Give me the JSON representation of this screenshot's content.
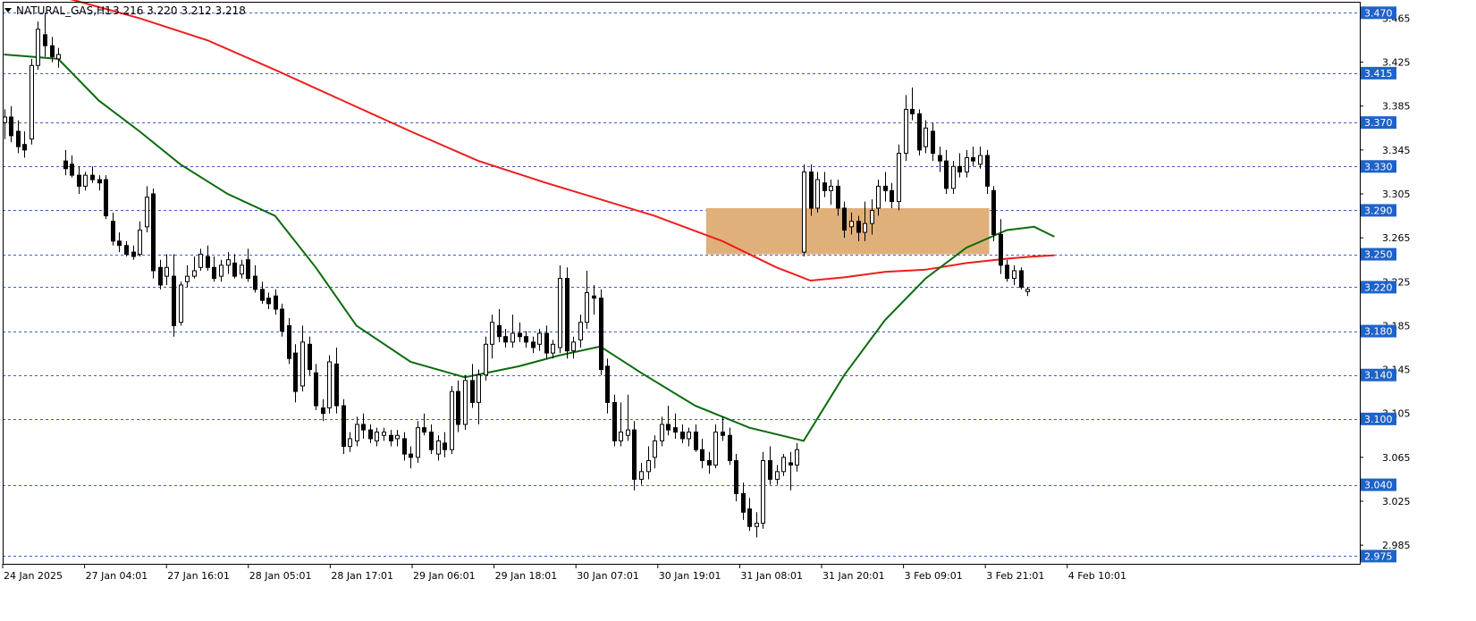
{
  "header": {
    "symbol": "NATURAL_GAS,H1",
    "ohlc": "3.216 3.220 3.212 3.218"
  },
  "colors": {
    "background": "#ffffff",
    "candle_bull_fill": "#ffffff",
    "candle_bear_fill": "#000000",
    "candle_outline": "#000000",
    "ma_fast": "#0b6b0b",
    "ma_slow": "#ee1d1d",
    "level_line": "#3b5fc0",
    "level_label_bg": "#1e63c8",
    "level_label_text": "#ffffff",
    "zone_fill": "#e0b07a",
    "axis_text": "#000000"
  },
  "chart_data": {
    "type": "candlestick",
    "timeframe": "H1",
    "ylim": [
      2.968,
      3.48
    ],
    "y_ticks": [
      "3.465",
      "3.425",
      "3.385",
      "3.345",
      "3.305",
      "3.265",
      "3.225",
      "3.185",
      "3.145",
      "3.105",
      "3.065",
      "3.025",
      "2.985"
    ],
    "x_tick_labels": [
      "24 Jan 2025",
      "27 Jan 04:01",
      "27 Jan 16:01",
      "28 Jan 05:01",
      "28 Jan 17:01",
      "29 Jan 06:01",
      "29 Jan 18:01",
      "30 Jan 07:01",
      "30 Jan 19:01",
      "31 Jan 08:01",
      "31 Jan 20:01",
      "3 Feb 09:01",
      "3 Feb 21:01",
      "4 Feb 10:01"
    ],
    "levels": [
      "3.470",
      "3.415",
      "3.370",
      "3.330",
      "3.290",
      "3.250",
      "3.220",
      "3.180",
      "3.140",
      "3.100",
      "3.040",
      "2.975"
    ],
    "zone": {
      "from_price": 3.25,
      "to_price": 3.292,
      "start_bar": 104,
      "end_bar": 145
    },
    "candles": [
      [
        3.37,
        3.382,
        3.355,
        3.375
      ],
      [
        3.375,
        3.385,
        3.352,
        3.358
      ],
      [
        3.362,
        3.372,
        3.342,
        3.348
      ],
      [
        3.35,
        3.362,
        3.338,
        3.345
      ],
      [
        3.355,
        3.428,
        3.35,
        3.422
      ],
      [
        3.422,
        3.462,
        3.418,
        3.455
      ],
      [
        3.45,
        3.47,
        3.43,
        3.44
      ],
      [
        3.44,
        3.448,
        3.425,
        3.43
      ],
      [
        3.428,
        3.438,
        3.42,
        3.432
      ],
      [
        3.335,
        3.345,
        3.322,
        3.328
      ],
      [
        3.332,
        3.34,
        3.32,
        3.322
      ],
      [
        3.322,
        3.33,
        3.305,
        3.312
      ],
      [
        3.312,
        3.325,
        3.308,
        3.322
      ],
      [
        3.322,
        3.33,
        3.315,
        3.318
      ],
      [
        3.318,
        3.322,
        3.308,
        3.315
      ],
      [
        3.318,
        3.322,
        3.282,
        3.285
      ],
      [
        3.28,
        3.288,
        3.258,
        3.262
      ],
      [
        3.262,
        3.27,
        3.252,
        3.258
      ],
      [
        3.258,
        3.262,
        3.248,
        3.25
      ],
      [
        3.252,
        3.258,
        3.245,
        3.248
      ],
      [
        3.25,
        3.28,
        3.248,
        3.272
      ],
      [
        3.275,
        3.312,
        3.27,
        3.302
      ],
      [
        3.305,
        3.31,
        3.228,
        3.235
      ],
      [
        3.238,
        3.245,
        3.218,
        3.222
      ],
      [
        3.23,
        3.25,
        3.222,
        3.238
      ],
      [
        3.23,
        3.25,
        3.175,
        3.185
      ],
      [
        3.188,
        3.225,
        3.185,
        3.222
      ],
      [
        3.225,
        3.24,
        3.22,
        3.23
      ],
      [
        3.23,
        3.248,
        3.228,
        3.235
      ],
      [
        3.238,
        3.255,
        3.235,
        3.25
      ],
      [
        3.248,
        3.258,
        3.235,
        3.238
      ],
      [
        3.238,
        3.248,
        3.225,
        3.228
      ],
      [
        3.23,
        3.245,
        3.225,
        3.24
      ],
      [
        3.24,
        3.252,
        3.232,
        3.245
      ],
      [
        3.242,
        3.25,
        3.228,
        3.23
      ],
      [
        3.232,
        3.245,
        3.228,
        3.24
      ],
      [
        3.245,
        3.255,
        3.225,
        3.228
      ],
      [
        3.23,
        3.24,
        3.215,
        3.218
      ],
      [
        3.218,
        3.225,
        3.205,
        3.208
      ],
      [
        3.21,
        3.215,
        3.2,
        3.205
      ],
      [
        3.212,
        3.218,
        3.195,
        3.2
      ],
      [
        3.2,
        3.205,
        3.175,
        3.18
      ],
      [
        3.185,
        3.192,
        3.15,
        3.155
      ],
      [
        3.16,
        3.168,
        3.115,
        3.125
      ],
      [
        3.13,
        3.185,
        3.125,
        3.17
      ],
      [
        3.168,
        3.175,
        3.14,
        3.145
      ],
      [
        3.142,
        3.15,
        3.108,
        3.112
      ],
      [
        3.11,
        3.118,
        3.098,
        3.105
      ],
      [
        3.11,
        3.158,
        3.105,
        3.152
      ],
      [
        3.15,
        3.165,
        3.105,
        3.112
      ],
      [
        3.112,
        3.118,
        3.068,
        3.075
      ],
      [
        3.075,
        3.088,
        3.07,
        3.082
      ],
      [
        3.08,
        3.102,
        3.075,
        3.095
      ],
      [
        3.095,
        3.105,
        3.082,
        3.09
      ],
      [
        3.09,
        3.095,
        3.078,
        3.082
      ],
      [
        3.08,
        3.092,
        3.075,
        3.088
      ],
      [
        3.085,
        3.092,
        3.08,
        3.088
      ],
      [
        3.085,
        3.09,
        3.075,
        3.08
      ],
      [
        3.082,
        3.09,
        3.075,
        3.085
      ],
      [
        3.082,
        3.088,
        3.062,
        3.068
      ],
      [
        3.068,
        3.075,
        3.055,
        3.065
      ],
      [
        3.065,
        3.098,
        3.06,
        3.092
      ],
      [
        3.092,
        3.105,
        3.085,
        3.088
      ],
      [
        3.088,
        3.095,
        3.068,
        3.072
      ],
      [
        3.068,
        3.085,
        3.062,
        3.08
      ],
      [
        3.078,
        3.088,
        3.065,
        3.072
      ],
      [
        3.072,
        3.13,
        3.068,
        3.125
      ],
      [
        3.125,
        3.135,
        3.088,
        3.095
      ],
      [
        3.095,
        3.14,
        3.09,
        3.135
      ],
      [
        3.135,
        3.15,
        3.11,
        3.115
      ],
      [
        3.115,
        3.145,
        3.095,
        3.14
      ],
      [
        3.14,
        3.175,
        3.135,
        3.168
      ],
      [
        3.168,
        3.195,
        3.155,
        3.188
      ],
      [
        3.185,
        3.2,
        3.17,
        3.175
      ],
      [
        3.175,
        3.182,
        3.165,
        3.17
      ],
      [
        3.17,
        3.195,
        3.165,
        3.178
      ],
      [
        3.178,
        3.188,
        3.17,
        3.175
      ],
      [
        3.175,
        3.18,
        3.165,
        3.17
      ],
      [
        3.17,
        3.175,
        3.16,
        3.165
      ],
      [
        3.168,
        3.182,
        3.162,
        3.178
      ],
      [
        3.178,
        3.185,
        3.155,
        3.16
      ],
      [
        3.16,
        3.172,
        3.155,
        3.168
      ],
      [
        3.165,
        3.24,
        3.16,
        3.228
      ],
      [
        3.228,
        3.238,
        3.155,
        3.162
      ],
      [
        3.162,
        3.175,
        3.155,
        3.17
      ],
      [
        3.172,
        3.195,
        3.165,
        3.188
      ],
      [
        3.188,
        3.235,
        3.182,
        3.215
      ],
      [
        3.212,
        3.222,
        3.195,
        3.21
      ],
      [
        3.21,
        3.218,
        3.14,
        3.145
      ],
      [
        3.148,
        3.155,
        3.105,
        3.115
      ],
      [
        3.115,
        3.122,
        3.075,
        3.08
      ],
      [
        3.08,
        3.115,
        3.075,
        3.088
      ],
      [
        3.085,
        3.122,
        3.08,
        3.09
      ],
      [
        3.09,
        3.098,
        3.035,
        3.045
      ],
      [
        3.045,
        3.06,
        3.04,
        3.052
      ],
      [
        3.052,
        3.075,
        3.045,
        3.062
      ],
      [
        3.065,
        3.085,
        3.055,
        3.08
      ],
      [
        3.08,
        3.102,
        3.075,
        3.095
      ],
      [
        3.095,
        3.112,
        3.085,
        3.09
      ],
      [
        3.092,
        3.105,
        3.082,
        3.088
      ],
      [
        3.088,
        3.095,
        3.078,
        3.082
      ],
      [
        3.082,
        3.092,
        3.075,
        3.088
      ],
      [
        3.088,
        3.095,
        3.07,
        3.072
      ],
      [
        3.072,
        3.082,
        3.055,
        3.062
      ],
      [
        3.062,
        3.07,
        3.05,
        3.058
      ],
      [
        3.058,
        3.095,
        3.055,
        3.088
      ],
      [
        3.088,
        3.102,
        3.08,
        3.085
      ],
      [
        3.085,
        3.092,
        3.058,
        3.062
      ],
      [
        3.062,
        3.068,
        3.025,
        3.032
      ],
      [
        3.032,
        3.042,
        3.008,
        3.015
      ],
      [
        3.018,
        3.028,
        2.998,
        3.002
      ],
      [
        3.002,
        3.015,
        2.992,
        3.005
      ],
      [
        3.005,
        3.07,
        3.0,
        3.062
      ],
      [
        3.062,
        3.075,
        3.04,
        3.045
      ],
      [
        3.045,
        3.058,
        3.04,
        3.052
      ],
      [
        3.052,
        3.068,
        3.048,
        3.065
      ],
      [
        3.06,
        3.07,
        3.035,
        3.058
      ],
      [
        3.058,
        3.078,
        3.052,
        3.072
      ],
      [
        3.252,
        3.332,
        3.248,
        3.325
      ],
      [
        3.325,
        3.332,
        3.285,
        3.292
      ],
      [
        3.292,
        3.325,
        3.288,
        3.318
      ],
      [
        3.315,
        3.325,
        3.302,
        3.308
      ],
      [
        3.308,
        3.318,
        3.295,
        3.312
      ],
      [
        3.312,
        3.318,
        3.285,
        3.292
      ],
      [
        3.292,
        3.298,
        3.265,
        3.272
      ],
      [
        3.275,
        3.288,
        3.268,
        3.28
      ],
      [
        3.28,
        3.285,
        3.262,
        3.27
      ],
      [
        3.27,
        3.298,
        3.262,
        3.278
      ],
      [
        3.278,
        3.3,
        3.268,
        3.29
      ],
      [
        3.292,
        3.318,
        3.285,
        3.312
      ],
      [
        3.312,
        3.325,
        3.298,
        3.308
      ],
      [
        3.308,
        3.315,
        3.292,
        3.298
      ],
      [
        3.298,
        3.35,
        3.29,
        3.342
      ],
      [
        3.342,
        3.395,
        3.335,
        3.382
      ],
      [
        3.382,
        3.402,
        3.372,
        3.378
      ],
      [
        3.378,
        3.382,
        3.34,
        3.345
      ],
      [
        3.348,
        3.372,
        3.342,
        3.365
      ],
      [
        3.362,
        3.37,
        3.335,
        3.342
      ],
      [
        3.34,
        3.348,
        3.325,
        3.335
      ],
      [
        3.335,
        3.345,
        3.305,
        3.31
      ],
      [
        3.31,
        3.335,
        3.305,
        3.33
      ],
      [
        3.33,
        3.342,
        3.32,
        3.325
      ],
      [
        3.325,
        3.345,
        3.32,
        3.338
      ],
      [
        3.338,
        3.348,
        3.33,
        3.335
      ],
      [
        3.332,
        3.348,
        3.328,
        3.34
      ],
      [
        3.34,
        3.345,
        3.305,
        3.312
      ],
      [
        3.308,
        3.312,
        3.262,
        3.268
      ],
      [
        3.268,
        3.282,
        3.232,
        3.24
      ],
      [
        3.24,
        3.245,
        3.225,
        3.228
      ],
      [
        3.228,
        3.24,
        3.222,
        3.235
      ],
      [
        3.235,
        3.238,
        3.218,
        3.22
      ],
      [
        3.216,
        3.22,
        3.212,
        3.218
      ]
    ],
    "ma_fast_points": [
      [
        0,
        3.432
      ],
      [
        8,
        3.428
      ],
      [
        14,
        3.39
      ],
      [
        20,
        3.362
      ],
      [
        26,
        3.332
      ],
      [
        33,
        3.305
      ],
      [
        40,
        3.285
      ],
      [
        46,
        3.238
      ],
      [
        52,
        3.185
      ],
      [
        60,
        3.152
      ],
      [
        68,
        3.138
      ],
      [
        76,
        3.148
      ],
      [
        82,
        3.158
      ],
      [
        88,
        3.166
      ],
      [
        94,
        3.142
      ],
      [
        102,
        3.112
      ],
      [
        110,
        3.092
      ],
      [
        118,
        3.08
      ],
      [
        124,
        3.14
      ],
      [
        130,
        3.19
      ],
      [
        136,
        3.228
      ],
      [
        142,
        3.256
      ],
      [
        148,
        3.272
      ],
      [
        152,
        3.275
      ],
      [
        155,
        3.266
      ]
    ],
    "ma_slow_points": [
      [
        0,
        3.492
      ],
      [
        10,
        3.482
      ],
      [
        20,
        3.465
      ],
      [
        30,
        3.445
      ],
      [
        40,
        3.418
      ],
      [
        50,
        3.39
      ],
      [
        60,
        3.362
      ],
      [
        70,
        3.335
      ],
      [
        80,
        3.315
      ],
      [
        88,
        3.3
      ],
      [
        96,
        3.285
      ],
      [
        106,
        3.262
      ],
      [
        114,
        3.238
      ],
      [
        119,
        3.226
      ],
      [
        124,
        3.229
      ],
      [
        130,
        3.234
      ],
      [
        136,
        3.236
      ],
      [
        142,
        3.242
      ],
      [
        148,
        3.246
      ],
      [
        152,
        3.248
      ],
      [
        155,
        3.249
      ]
    ]
  }
}
